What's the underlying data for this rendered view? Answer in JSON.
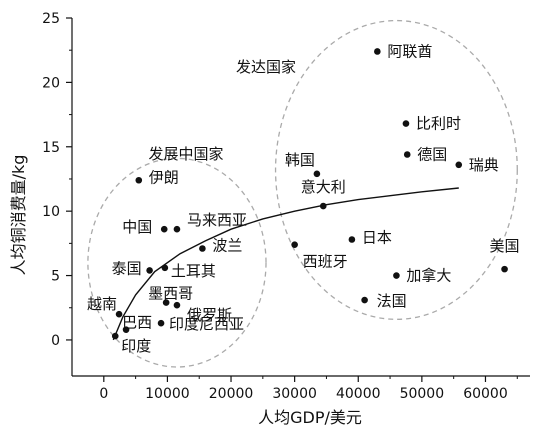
{
  "chart_data": {
    "type": "scatter",
    "xlabel": "人均GDP/美元",
    "ylabel": "人均铜消费量/kg",
    "xlim": [
      -5000,
      67000
    ],
    "ylim": [
      -2.8,
      25
    ],
    "x_ticks": [
      0,
      10000,
      20000,
      30000,
      40000,
      50000,
      60000
    ],
    "y_ticks": [
      0,
      5,
      10,
      15,
      20,
      25
    ],
    "grid": false,
    "legend": "none",
    "colors": {
      "point": "#111111",
      "axis": "#111111",
      "trend": "#111111",
      "region": "#aaaaaa"
    },
    "points": [
      {
        "label": "阿联酋",
        "x": 43000,
        "y": 22.4
      },
      {
        "label": "比利时",
        "x": 47500,
        "y": 16.8
      },
      {
        "label": "德国",
        "x": 47700,
        "y": 14.4
      },
      {
        "label": "瑞典",
        "x": 55800,
        "y": 13.6
      },
      {
        "label": "韩国",
        "x": 33500,
        "y": 12.9
      },
      {
        "label": "意大利",
        "x": 34500,
        "y": 10.4
      },
      {
        "label": "日本",
        "x": 39000,
        "y": 7.8
      },
      {
        "label": "西班牙",
        "x": 30000,
        "y": 7.4
      },
      {
        "label": "加拿大",
        "x": 46000,
        "y": 5.0
      },
      {
        "label": "美国",
        "x": 63000,
        "y": 5.5
      },
      {
        "label": "法国",
        "x": 41000,
        "y": 3.1
      },
      {
        "label": "伊朗",
        "x": 5500,
        "y": 12.4
      },
      {
        "label": "中国",
        "x": 9500,
        "y": 8.6
      },
      {
        "label": "马来西亚",
        "x": 11500,
        "y": 8.6
      },
      {
        "label": "波兰",
        "x": 15500,
        "y": 7.1
      },
      {
        "label": "泰国",
        "x": 7200,
        "y": 5.4
      },
      {
        "label": "土耳其",
        "x": 9600,
        "y": 5.6
      },
      {
        "label": "墨西哥",
        "x": 9800,
        "y": 2.9
      },
      {
        "label": "俄罗斯",
        "x": 11500,
        "y": 2.7
      },
      {
        "label": "越南",
        "x": 2400,
        "y": 2.0
      },
      {
        "label": "巴西",
        "x": 3500,
        "y": 0.8
      },
      {
        "label": "印度尼西亚",
        "x": 9000,
        "y": 1.3
      },
      {
        "label": "印度",
        "x": 1800,
        "y": 0.3
      }
    ],
    "trend_line": {
      "x": [
        1500,
        3000,
        5000,
        8000,
        12000,
        16000,
        20000,
        25000,
        30000,
        35000,
        40000,
        45000,
        50000,
        55800
      ],
      "y": [
        0.0,
        1.8,
        3.5,
        5.3,
        6.7,
        7.7,
        8.6,
        9.4,
        10.0,
        10.5,
        10.9,
        11.2,
        11.5,
        11.8
      ]
    },
    "regions": [
      {
        "label": "发达国家",
        "cx": 46000,
        "cy": 13.2,
        "rx": 19000,
        "ry": 11.6
      },
      {
        "label": "发展中国家",
        "cx": 11500,
        "cy": 6.0,
        "rx": 14000,
        "ry": 8.1
      }
    ]
  }
}
